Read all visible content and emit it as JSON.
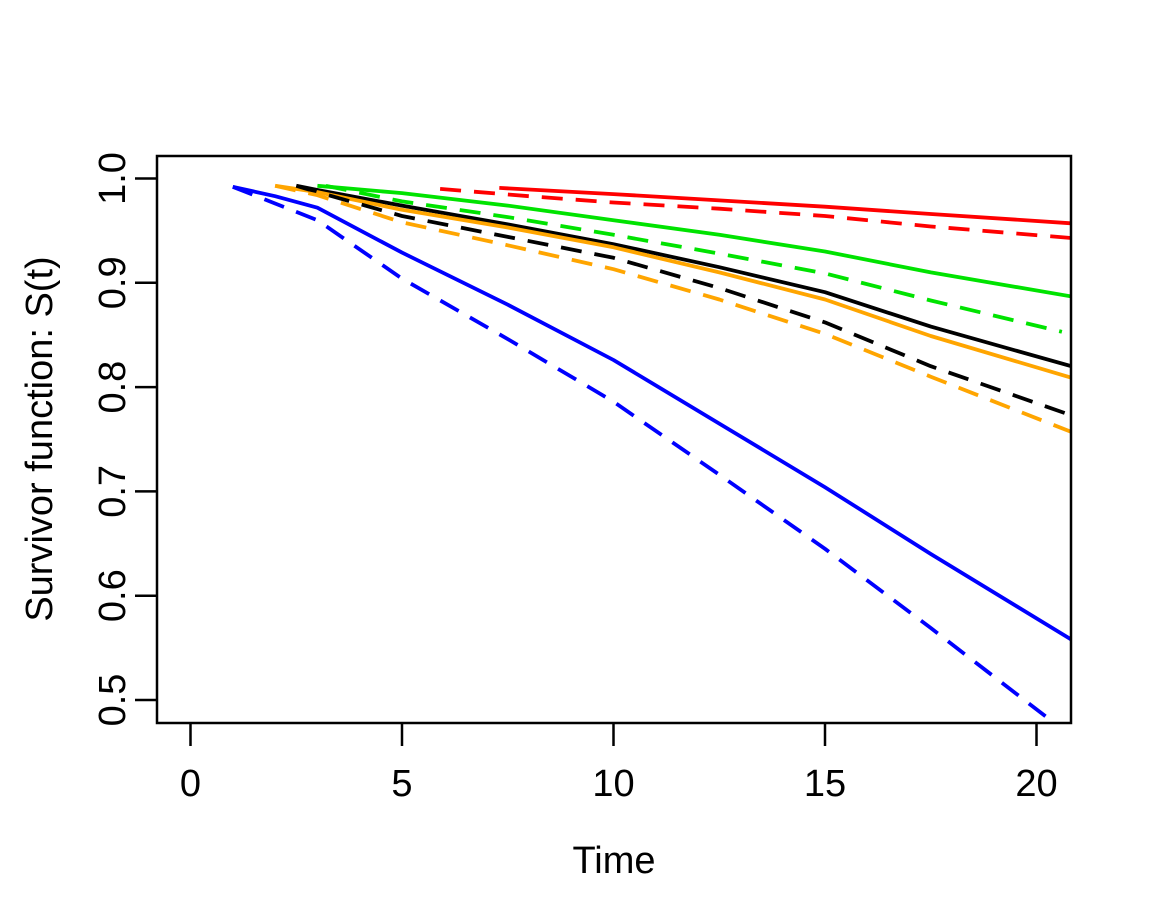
{
  "figure": {
    "background": "#ffffff",
    "axis_color": "#000000",
    "box": "full-frame"
  },
  "chart_data": {
    "type": "line",
    "title": "",
    "xlabel": "Time",
    "ylabel": "Survivor function: S(t)",
    "x_ticks": [
      0,
      5,
      10,
      15,
      20
    ],
    "y_ticks": [
      0.5,
      0.6,
      0.7,
      0.8,
      0.9,
      1.0
    ],
    "xlim": [
      -0.8,
      20.8
    ],
    "ylim": [
      0.478,
      1.021
    ],
    "grid": false,
    "legend": "none",
    "line_width": 3.8,
    "dash_pattern": [
      21,
      13
    ],
    "series": [
      {
        "name": "red-solid",
        "color_hex": "#ff0000",
        "linestyle": "solid",
        "points": [
          [
            7.3,
            0.991
          ],
          [
            10,
            0.985
          ],
          [
            12.5,
            0.979
          ],
          [
            15,
            0.973
          ],
          [
            17.5,
            0.966
          ],
          [
            20.82,
            0.957
          ]
        ]
      },
      {
        "name": "green-solid",
        "color_hex": "#00e300",
        "linestyle": "solid",
        "points": [
          [
            3.0,
            0.993
          ],
          [
            5,
            0.986
          ],
          [
            7.5,
            0.974
          ],
          [
            10,
            0.96
          ],
          [
            12.5,
            0.946
          ],
          [
            15,
            0.93
          ],
          [
            17.5,
            0.91
          ],
          [
            20.82,
            0.887
          ]
        ]
      },
      {
        "name": "black-solid",
        "color_hex": "#000000",
        "linestyle": "solid",
        "points": [
          [
            2.5,
            0.993
          ],
          [
            3,
            0.989
          ],
          [
            5,
            0.974
          ],
          [
            7.5,
            0.956
          ],
          [
            10,
            0.937
          ],
          [
            12.5,
            0.915
          ],
          [
            15,
            0.891
          ],
          [
            17.5,
            0.858
          ],
          [
            20.82,
            0.82
          ]
        ]
      },
      {
        "name": "orange-solid",
        "color_hex": "#ffa500",
        "linestyle": "solid",
        "points": [
          [
            2.0,
            0.993
          ],
          [
            3,
            0.987
          ],
          [
            5,
            0.97
          ],
          [
            7.5,
            0.953
          ],
          [
            10,
            0.934
          ],
          [
            12.5,
            0.91
          ],
          [
            15,
            0.884
          ],
          [
            17.5,
            0.849
          ],
          [
            20.82,
            0.809
          ]
        ]
      },
      {
        "name": "blue-solid",
        "color_hex": "#0000ff",
        "linestyle": "solid",
        "points": [
          [
            1.0,
            0.992
          ],
          [
            2,
            0.983
          ],
          [
            3,
            0.972
          ],
          [
            5,
            0.929
          ],
          [
            7.5,
            0.879
          ],
          [
            10,
            0.826
          ],
          [
            12.5,
            0.765
          ],
          [
            15,
            0.704
          ],
          [
            17.5,
            0.64
          ],
          [
            20.82,
            0.558
          ]
        ]
      },
      {
        "name": "red-dashed",
        "color_hex": "#ff0000",
        "linestyle": "dashed",
        "points": [
          [
            5.9,
            0.99
          ],
          [
            8,
            0.983
          ],
          [
            10,
            0.977
          ],
          [
            12.5,
            0.971
          ],
          [
            15,
            0.964
          ],
          [
            17.5,
            0.954
          ],
          [
            20.82,
            0.943
          ]
        ]
      },
      {
        "name": "green-dashed",
        "color_hex": "#00e300",
        "linestyle": "dashed",
        "points": [
          [
            3.2,
            0.993
          ],
          [
            5,
            0.978
          ],
          [
            7.5,
            0.963
          ],
          [
            10,
            0.946
          ],
          [
            12.5,
            0.928
          ],
          [
            15,
            0.909
          ],
          [
            17.5,
            0.883
          ],
          [
            20.6,
            0.853
          ]
        ]
      },
      {
        "name": "black-dashed",
        "color_hex": "#000000",
        "linestyle": "dashed",
        "points": [
          [
            2.5,
            0.993
          ],
          [
            3,
            0.987
          ],
          [
            5,
            0.964
          ],
          [
            7.5,
            0.944
          ],
          [
            10,
            0.924
          ],
          [
            12.5,
            0.895
          ],
          [
            15,
            0.862
          ],
          [
            17.5,
            0.82
          ],
          [
            20.82,
            0.773
          ]
        ]
      },
      {
        "name": "orange-dashed",
        "color_hex": "#ffa500",
        "linestyle": "dashed",
        "points": [
          [
            2.0,
            0.993
          ],
          [
            3,
            0.984
          ],
          [
            5,
            0.958
          ],
          [
            7.5,
            0.936
          ],
          [
            10,
            0.913
          ],
          [
            12.5,
            0.884
          ],
          [
            15,
            0.851
          ],
          [
            17.5,
            0.81
          ],
          [
            20.82,
            0.757
          ]
        ]
      },
      {
        "name": "blue-dashed",
        "color_hex": "#0000ff",
        "linestyle": "dashed",
        "points": [
          [
            1.0,
            0.992
          ],
          [
            2,
            0.976
          ],
          [
            3,
            0.96
          ],
          [
            5,
            0.904
          ],
          [
            7.5,
            0.846
          ],
          [
            10,
            0.786
          ],
          [
            12.5,
            0.716
          ],
          [
            15,
            0.645
          ],
          [
            17.5,
            0.569
          ],
          [
            20.45,
            0.477
          ]
        ]
      }
    ]
  }
}
